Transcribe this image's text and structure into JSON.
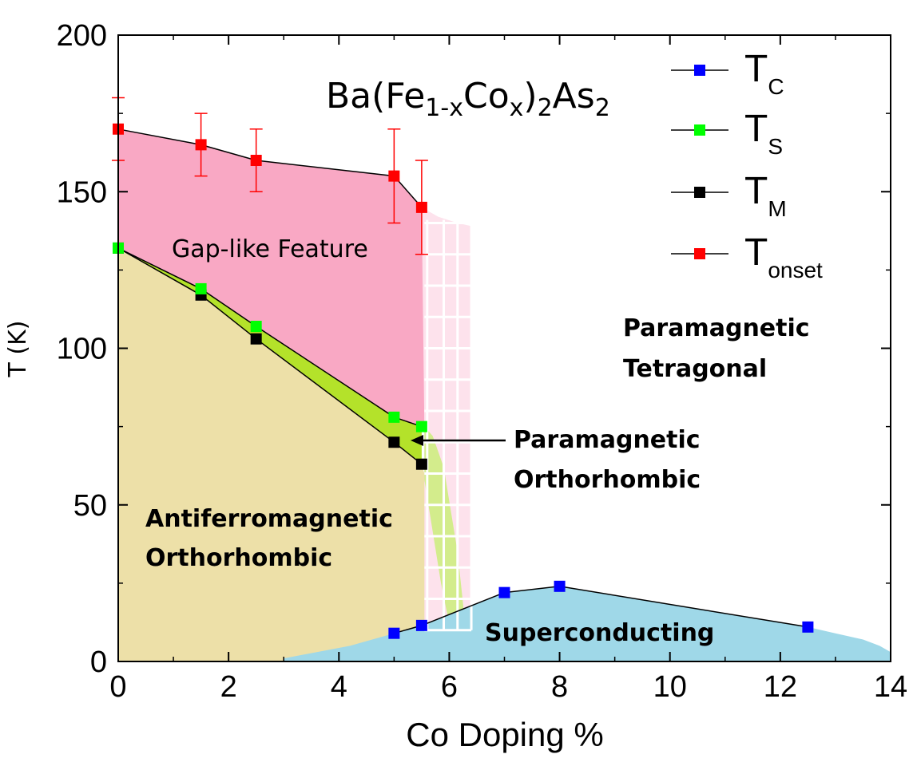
{
  "chart_data": {
    "type": "line",
    "xlabel": "Co Doping %",
    "ylabel": "T (K)",
    "xlim": [
      0,
      14
    ],
    "ylim": [
      0,
      200
    ],
    "x_ticks": [
      0,
      2,
      4,
      6,
      8,
      10,
      12,
      14
    ],
    "y_ticks": [
      0,
      50,
      100,
      150,
      200
    ],
    "formula": {
      "base": "Ba(Fe",
      "sub1": "1-x",
      "mid1": "Co",
      "sub2": "x",
      "mid2": ")",
      "sub3": "2",
      "mid3": "As",
      "sub4": "2"
    },
    "series": [
      {
        "name": "T",
        "sub": "C",
        "color": "#0000ff",
        "points": [
          [
            5.0,
            9
          ],
          [
            5.5,
            11.5
          ],
          [
            7.0,
            22
          ],
          [
            8.0,
            24
          ],
          [
            12.5,
            11
          ]
        ]
      },
      {
        "name": "T",
        "sub": "S",
        "color": "#00ff00",
        "points": [
          [
            0.0,
            132
          ],
          [
            1.5,
            119
          ],
          [
            2.5,
            107
          ],
          [
            5.0,
            78
          ],
          [
            5.5,
            75
          ]
        ]
      },
      {
        "name": "T",
        "sub": "M",
        "color": "#000000",
        "points": [
          [
            0.0,
            132
          ],
          [
            1.5,
            117
          ],
          [
            2.5,
            103
          ],
          [
            5.0,
            70
          ],
          [
            5.5,
            63
          ]
        ]
      },
      {
        "name": "T",
        "sub": "onset",
        "color": "#ff0000",
        "points": [
          [
            0.0,
            170
          ],
          [
            1.5,
            165
          ],
          [
            2.5,
            160
          ],
          [
            5.0,
            155
          ],
          [
            5.5,
            145
          ]
        ],
        "errors": [
          10,
          10,
          10,
          15,
          15
        ]
      }
    ],
    "regions": [
      {
        "id": "gap",
        "label": "Gap-like Feature",
        "color": "#f9a8c4"
      },
      {
        "id": "afm",
        "lines": [
          "Antiferromagnetic",
          "Orthorhombic"
        ],
        "color": "#ede0a8"
      },
      {
        "id": "pmo",
        "lines": [
          "Paramagnetic",
          "Orthorhombic"
        ],
        "color": "#b4e22a"
      },
      {
        "id": "pmt",
        "lines": [
          "Paramagnetic",
          "Tetragonal"
        ]
      },
      {
        "id": "sc",
        "label": "Superconducting",
        "color": "#9fd8e8"
      }
    ]
  }
}
